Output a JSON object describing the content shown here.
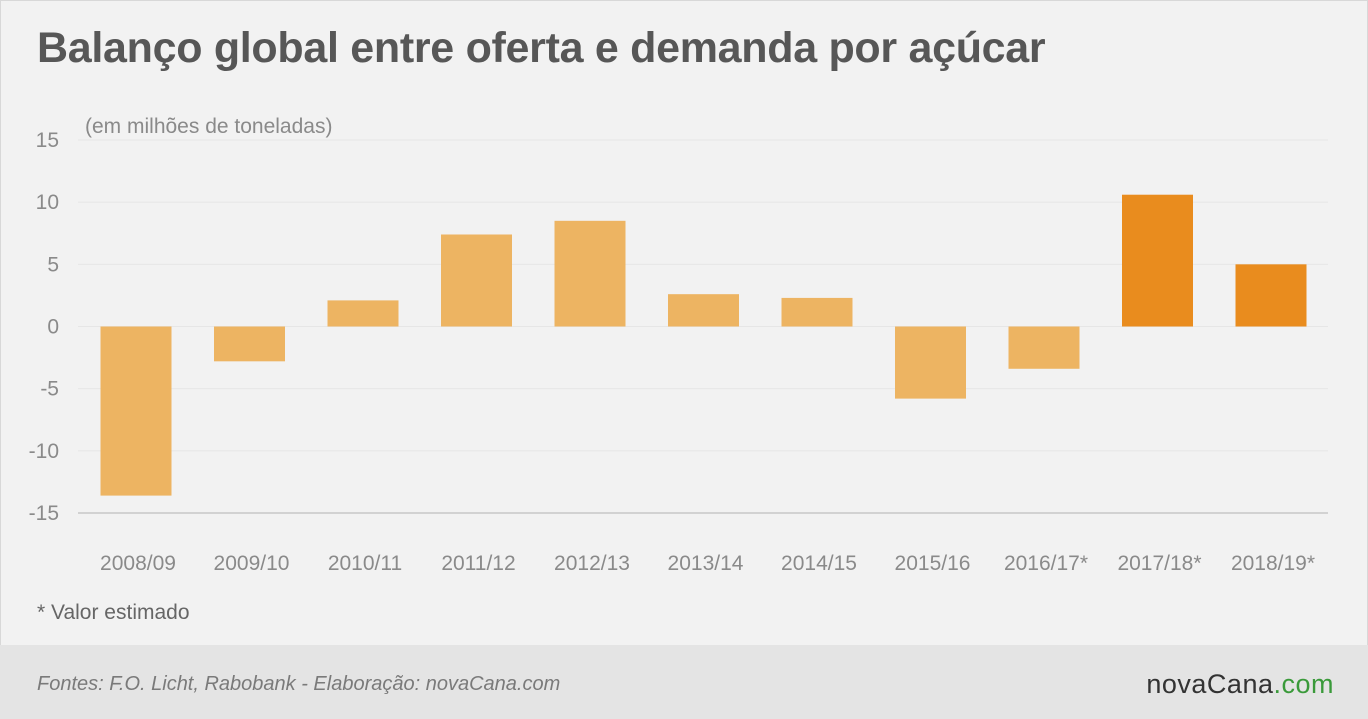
{
  "title": "Balanço global entre oferta e demanda por açúcar",
  "note": "* Valor estimado",
  "footer": {
    "source": "Fontes: F.O. Licht, Rabobank - Elaboração: novaCana.com",
    "brand_main": "novaCana",
    "brand_suffix": ".com"
  },
  "colors": {
    "actual": "#edb462",
    "estimated": "#e98c1e",
    "grid": "#e6e6e6",
    "axis": "#d2d2d2"
  },
  "chart_data": {
    "type": "bar",
    "title": "Balanço global entre oferta e demanda por açúcar",
    "unit_label": "(em milhões de toneladas)",
    "xlabel": "",
    "ylabel": "",
    "ylim": [
      -15,
      15
    ],
    "yticks": [
      15,
      10,
      5,
      0,
      -5,
      -10,
      -15
    ],
    "grid": true,
    "categories": [
      "2008/09",
      "2009/10",
      "2010/11",
      "2011/12",
      "2012/13",
      "2013/14",
      "2014/15",
      "2015/16",
      "2016/17*",
      "2017/18*",
      "2018/19*"
    ],
    "values": [
      -13.6,
      -2.8,
      2.1,
      7.4,
      8.5,
      2.6,
      2.3,
      -5.8,
      -3.4,
      10.6,
      5.0
    ],
    "highlight_categories": [
      "2017/18*",
      "2018/19*"
    ]
  }
}
